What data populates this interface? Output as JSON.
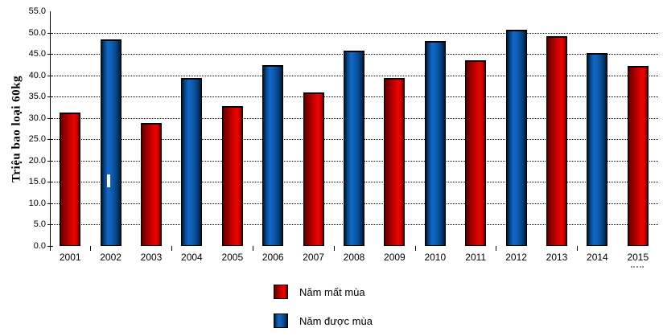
{
  "chart_data": {
    "type": "bar",
    "title": "",
    "xlabel": "",
    "ylabel": "Triệu bao loại 60kg",
    "ylim": [
      0,
      55
    ],
    "ytick_step": 5,
    "ytick_labels": [
      "0.0",
      "5.0",
      "10.0",
      "15.0",
      "20.0",
      "25.0",
      "30.0",
      "35.0",
      "40.0",
      "45.0",
      "50.0",
      "55.0"
    ],
    "grid": "horizontal-dotted",
    "legend_position": "bottom",
    "categories": [
      "2001",
      "2002",
      "2003",
      "2004",
      "2005",
      "2006",
      "2007",
      "2008",
      "2009",
      "2010",
      "2011",
      "2012",
      "2013",
      "2014",
      "2015"
    ],
    "series": [
      {
        "name": "Năm mất mùa",
        "color": "#dd0000",
        "style": "red",
        "values": [
          31.3,
          null,
          28.9,
          null,
          32.9,
          null,
          36.1,
          null,
          39.5,
          null,
          43.5,
          null,
          49.2,
          null,
          42.3
        ]
      },
      {
        "name": "Năm được mùa",
        "color": "#0f62be",
        "style": "blue",
        "values": [
          null,
          48.5,
          null,
          39.4,
          null,
          42.5,
          null,
          45.9,
          null,
          48.1,
          null,
          50.8,
          null,
          45.3,
          null
        ]
      }
    ],
    "bars": [
      {
        "category": "2001",
        "value": 31.3,
        "series": "Năm mất mùa"
      },
      {
        "category": "2002",
        "value": 48.5,
        "series": "Năm được mùa"
      },
      {
        "category": "2003",
        "value": 28.9,
        "series": "Năm mất mùa"
      },
      {
        "category": "2004",
        "value": 39.4,
        "series": "Năm được mùa"
      },
      {
        "category": "2005",
        "value": 32.9,
        "series": "Năm mất mùa"
      },
      {
        "category": "2006",
        "value": 42.5,
        "series": "Năm được mùa"
      },
      {
        "category": "2007",
        "value": 36.1,
        "series": "Năm mất mùa"
      },
      {
        "category": "2008",
        "value": 45.9,
        "series": "Năm được mùa"
      },
      {
        "category": "2009",
        "value": 39.5,
        "series": "Năm mất mùa"
      },
      {
        "category": "2010",
        "value": 48.1,
        "series": "Năm được mùa"
      },
      {
        "category": "2011",
        "value": 43.5,
        "series": "Năm mất mùa"
      },
      {
        "category": "2012",
        "value": 50.8,
        "series": "Năm được mùa"
      },
      {
        "category": "2013",
        "value": 49.2,
        "series": "Năm mất mùa"
      },
      {
        "category": "2014",
        "value": 45.3,
        "series": "Năm được mùa"
      },
      {
        "category": "2015",
        "value": 42.3,
        "series": "Năm mất mùa"
      }
    ],
    "x_axis_boundary_ticks_after": [
      "2001",
      "2003",
      "2005",
      "2007",
      "2009",
      "2011",
      "2013"
    ]
  },
  "legend": {
    "items": [
      {
        "label": "Năm mất mùa",
        "color": "#dd0000"
      },
      {
        "label": "Năm được mùa",
        "color": "#0f62be"
      }
    ]
  }
}
